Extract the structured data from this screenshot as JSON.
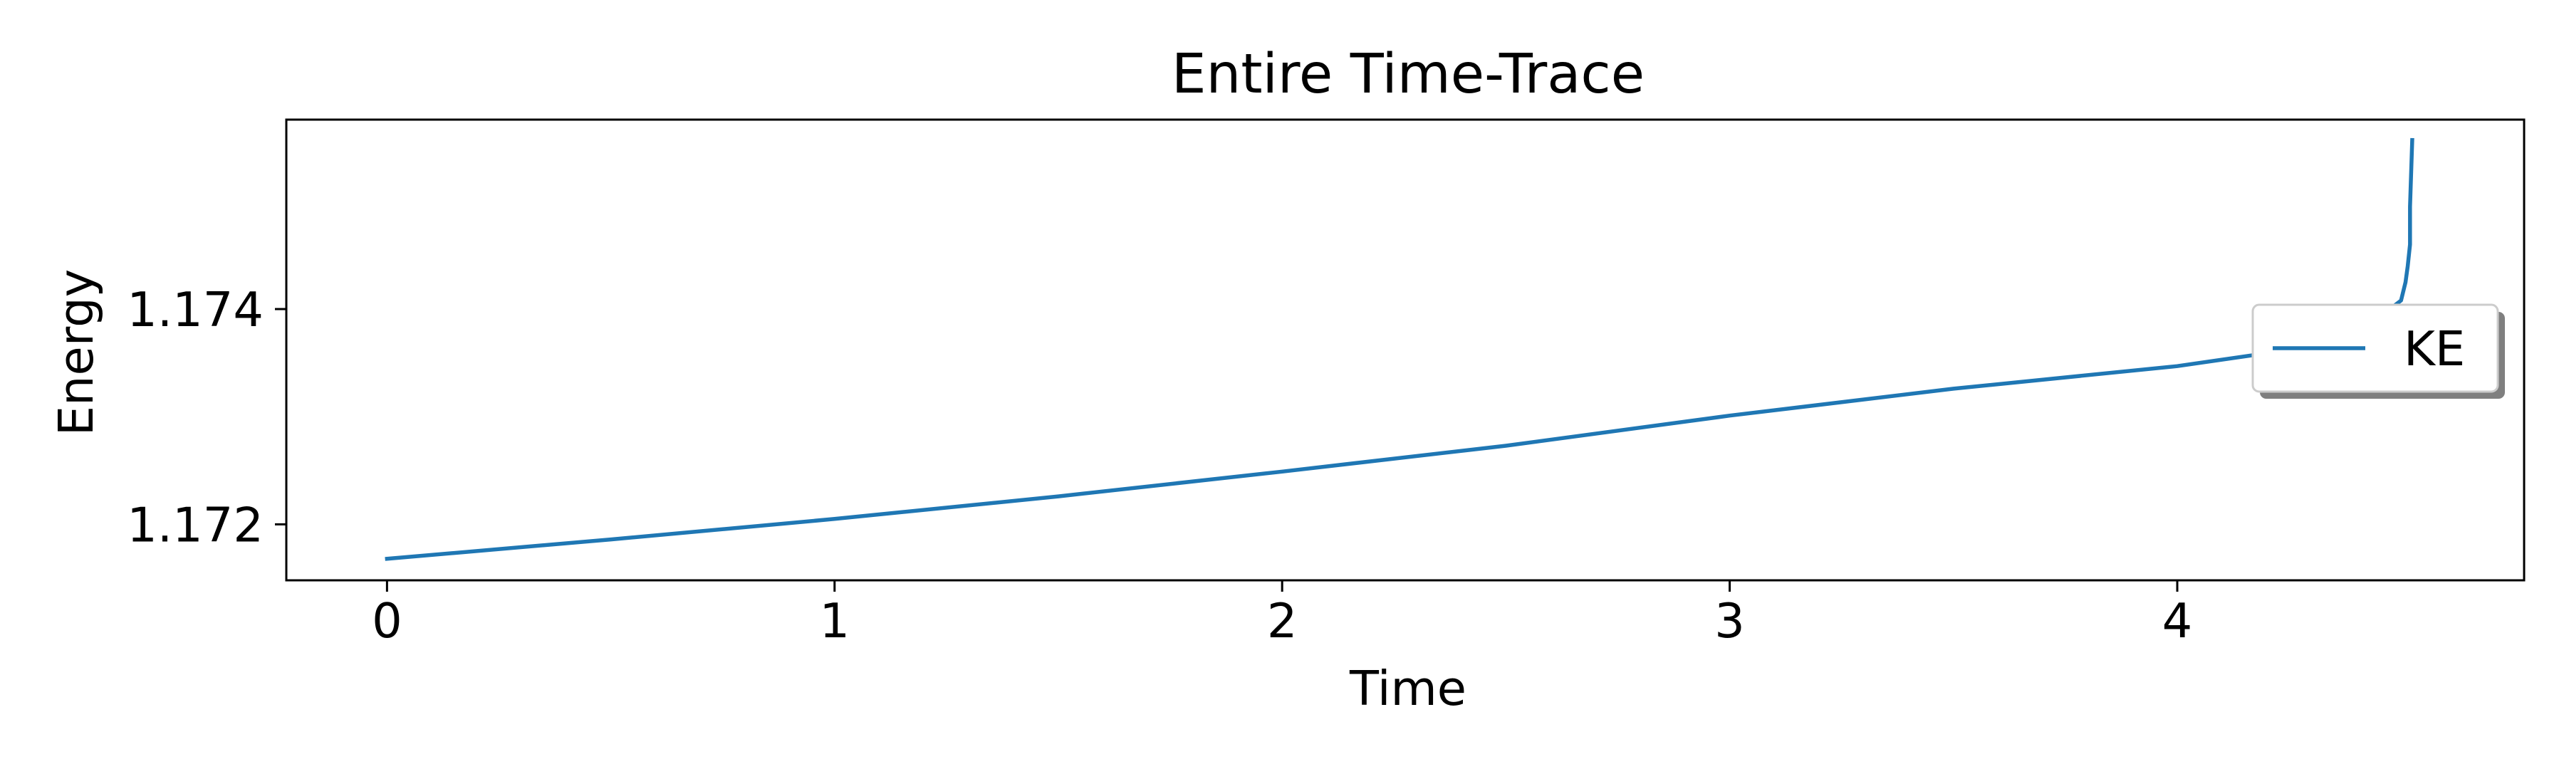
{
  "chart_data": {
    "type": "line",
    "title": "Entire Time-Trace",
    "xlabel": "Time",
    "ylabel": "Energy",
    "xlim": [
      -0.225,
      4.775
    ],
    "ylim": [
      1.17148,
      1.17576
    ],
    "xticks": [
      0,
      1,
      2,
      3,
      4
    ],
    "xtick_labels": [
      "0",
      "1",
      "2",
      "3",
      "4"
    ],
    "yticks": [
      1.172,
      1.174
    ],
    "ytick_labels": [
      "1.172",
      "1.174"
    ],
    "grid": false,
    "legend": {
      "position": "center-right",
      "shadow": true
    },
    "series": [
      {
        "name": "KE",
        "color": "#1f77b4",
        "x": [
          0.0,
          0.5,
          1.0,
          1.5,
          2.0,
          2.5,
          3.0,
          3.5,
          4.0,
          4.2,
          4.35,
          4.45,
          4.5,
          4.51,
          4.515,
          4.52,
          4.52,
          4.525
        ],
        "y": [
          1.17168,
          1.17186,
          1.17205,
          1.17226,
          1.17249,
          1.17273,
          1.17301,
          1.17326,
          1.17347,
          1.17359,
          1.17372,
          1.17392,
          1.17408,
          1.17425,
          1.1744,
          1.1746,
          1.17495,
          1.17557
        ]
      }
    ]
  }
}
